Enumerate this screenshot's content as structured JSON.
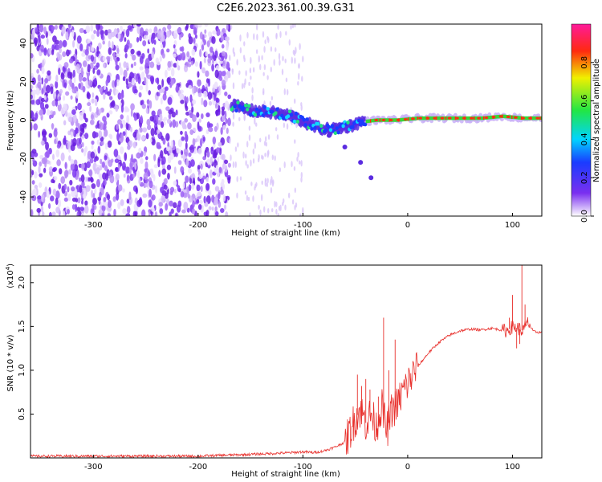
{
  "title": "C2E6.2023.361.00.39.G31",
  "chart_data": [
    {
      "type": "heatmap",
      "xlabel": "Height of straight line (km)",
      "ylabel": "Frequency (Hz)",
      "xlim": [
        -360,
        128
      ],
      "ylim": [
        -50,
        50
      ],
      "xticks": [
        -300,
        -200,
        -100,
        0,
        100
      ],
      "xtick_labels": [
        "-300",
        "-200",
        "-100",
        "0",
        "100"
      ],
      "yticks": [
        -40,
        -20,
        0,
        20,
        40
      ],
      "ytick_labels": [
        "-40",
        "-20",
        "0",
        "20",
        "40"
      ],
      "grid": false,
      "colorbar": {
        "label": "Normalized spectral amplitude",
        "range": [
          0,
          1
        ],
        "ticks": [
          0.0,
          0.2,
          0.4,
          0.6,
          0.8
        ],
        "tick_labels": [
          "0.0",
          "0.2",
          "0.4",
          "0.6",
          "0.8"
        ],
        "colormap": "violet-blue-cyan-green-yellow-red-magenta"
      },
      "features": {
        "noise_region_x": [
          -360,
          -170
        ],
        "sparse_region_x": [
          -170,
          -100
        ],
        "signal_ridge": {
          "x": [
            -168,
            -150,
            -130,
            -110,
            -95,
            -85,
            -75,
            -65,
            -55,
            -45,
            -30,
            -10,
            10,
            40,
            70,
            90,
            110,
            128
          ],
          "y": [
            8,
            5,
            4,
            2,
            -2,
            -4,
            -5,
            -4,
            -3,
            -1,
            0,
            0,
            1,
            1,
            1,
            2,
            1,
            1
          ]
        },
        "branch": {
          "x": [
            -75,
            -60,
            -45,
            -35
          ],
          "y": [
            -8,
            -14,
            -22,
            -30
          ]
        }
      }
    },
    {
      "type": "line",
      "xlabel": "Height of straight line (km)",
      "ylabel": "SNR (10 * v/v)",
      "y_scale_label": "(x10",
      "y_scale_exp": "4",
      "y_scale_close": ")",
      "xlim": [
        -360,
        128
      ],
      "ylim": [
        0,
        2.2
      ],
      "xticks": [
        -300,
        -200,
        -100,
        0,
        100
      ],
      "xtick_labels": [
        "-300",
        "-200",
        "-100",
        "0",
        "100"
      ],
      "yticks": [
        0.5,
        1.0,
        1.5,
        2.0
      ],
      "ytick_labels": [
        "0.5",
        "1.0",
        "1.5",
        "2.0"
      ],
      "grid": false,
      "series": [
        {
          "color": "#e8302c",
          "x": [
            -360,
            -300,
            -250,
            -200,
            -150,
            -130,
            -110,
            -100,
            -90,
            -80,
            -70,
            -60,
            -55,
            -50,
            -45,
            -40,
            -35,
            -30,
            -25,
            -20,
            -15,
            -10,
            -5,
            0,
            5,
            10,
            20,
            30,
            40,
            50,
            60,
            70,
            80,
            90,
            95,
            100,
            105,
            110,
            115,
            120,
            128
          ],
          "y": [
            0.02,
            0.02,
            0.02,
            0.02,
            0.04,
            0.05,
            0.06,
            0.07,
            0.06,
            0.08,
            0.12,
            0.18,
            0.3,
            0.45,
            0.55,
            0.4,
            0.5,
            0.35,
            0.6,
            0.3,
            0.55,
            0.6,
            0.75,
            0.85,
            0.95,
            1.05,
            1.2,
            1.32,
            1.4,
            1.45,
            1.47,
            1.46,
            1.48,
            1.46,
            1.45,
            1.5,
            1.48,
            1.45,
            1.55,
            1.44,
            1.43
          ]
        }
      ],
      "spikes": {
        "x": [
          -48,
          -44,
          -40,
          -36,
          -28,
          -23,
          -18,
          -12,
          97,
          100,
          104,
          107,
          109,
          112
        ],
        "y": [
          0.95,
          0.82,
          0.9,
          0.78,
          0.7,
          1.6,
          1.0,
          1.35,
          1.6,
          1.86,
          1.25,
          1.3,
          2.2,
          1.75
        ]
      }
    }
  ]
}
